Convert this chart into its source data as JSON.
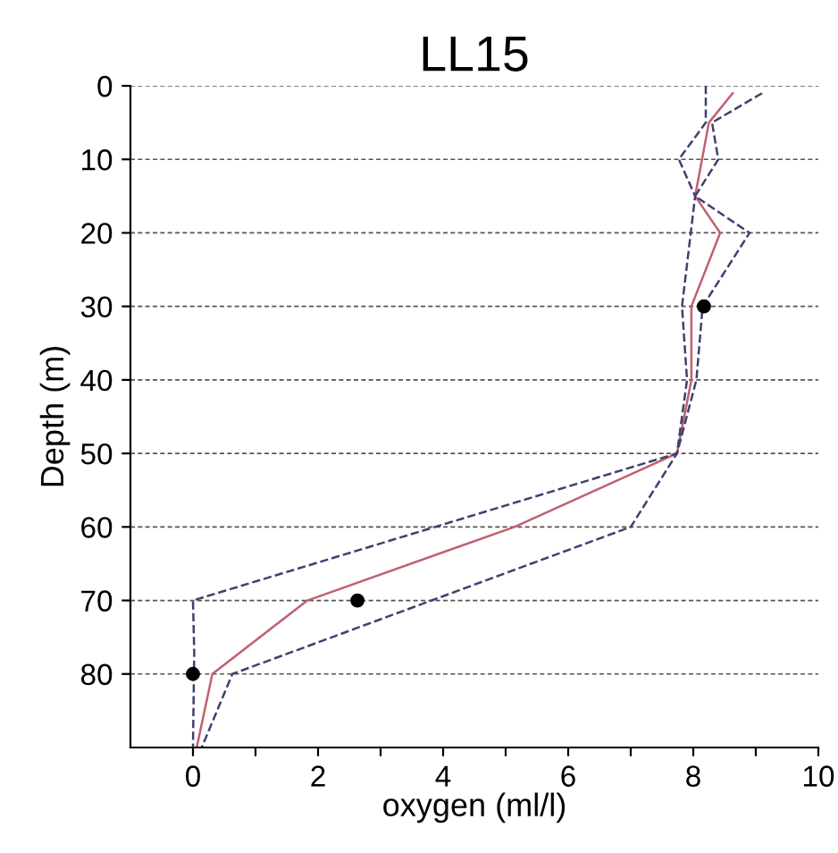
{
  "chart_data": {
    "type": "line",
    "title": "LL15",
    "xlabel": "oxygen (ml/l)",
    "ylabel": "Depth (m)",
    "xlim": [
      -1,
      10
    ],
    "xticks": [
      0,
      {
        "value": 1,
        "label": null
      },
      2,
      {
        "value": 3,
        "label": null
      },
      4,
      {
        "value": 5,
        "label": null
      },
      6,
      {
        "value": 7,
        "label": null
      },
      8,
      {
        "value": 9,
        "label": null
      },
      10
    ],
    "ylim": [
      90,
      0
    ],
    "yticks": [
      0,
      10,
      20,
      30,
      40,
      50,
      60,
      70,
      80
    ],
    "grid": "y",
    "series": [
      {
        "color": "#c06070",
        "line_style": "solid",
        "x": [
          8.63,
          8.25,
          8.03,
          8.43,
          7.97,
          7.97,
          7.74,
          5.14,
          1.83,
          0.31,
          0.06
        ],
        "values": [
          1,
          5,
          15,
          20,
          30,
          40,
          50,
          60,
          70,
          80,
          90
        ]
      },
      {
        "color": "#404070",
        "line_style": "dashed",
        "x": [
          8.2,
          8.2,
          7.77,
          8.03,
          7.82,
          7.9,
          7.74,
          0,
          0.02,
          0
        ],
        "values": [
          0,
          5,
          10,
          15,
          30,
          40,
          50,
          70,
          77,
          90
        ]
      },
      {
        "color": "#404070",
        "line_style": "dashed",
        "x": [
          9.1,
          8.3,
          8.4,
          8.03,
          8.9,
          8.15,
          8.05,
          7.74,
          7.0,
          0.63,
          0.14
        ],
        "values": [
          1,
          5,
          10,
          15,
          20,
          30,
          40,
          50,
          60,
          80,
          90
        ]
      },
      {
        "type": "scatter",
        "color": "#000000",
        "marker": "circle",
        "x": [
          8.17,
          2.63,
          0
        ],
        "values": [
          30,
          70,
          80
        ]
      }
    ]
  }
}
